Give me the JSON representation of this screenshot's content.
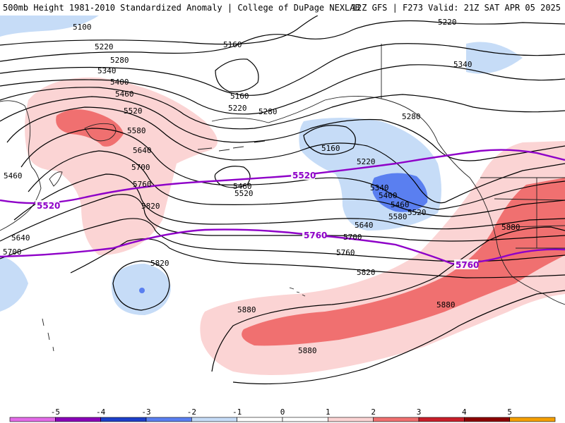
{
  "header": {
    "title_left": "500mb Height 1981-2010 Standardized Anomaly | College of DuPage NEXLAB",
    "title_right": "12Z GFS | F273 Valid: 21Z SAT APR 05 2025"
  },
  "colors": {
    "neg5": "#e36be8",
    "neg4": "#8a00b8",
    "neg3": "#1d3fc9",
    "neg2": "#5a7ff0",
    "neg1": "#c6dcf7",
    "zero": "#ffffff",
    "pos1": "#fbd4d4",
    "pos2": "#f07070",
    "pos3": "#c81e2a",
    "pos4": "#8c0000",
    "pos5": "#f5a000",
    "contour": "#000000",
    "highlight": "#8e00c8",
    "coast": "#222222"
  },
  "map": {
    "height_labels": [
      "5100",
      "5220",
      "5280",
      "5340",
      "5400",
      "5460",
      "5520",
      "5580",
      "5640",
      "5700",
      "5760",
      "5820",
      "5160",
      "5160",
      "5220",
      "5280",
      "5160",
      "5220",
      "5340",
      "5400",
      "5460",
      "5520",
      "5580",
      "5640",
      "5700",
      "5760",
      "5820",
      "5460",
      "5520",
      "5640",
      "5700",
      "5820",
      "5880",
      "5880",
      "5880",
      "5880",
      "5220",
      "5340",
      "5280",
      "5460"
    ],
    "highlight_labels": [
      "5520",
      "5520",
      "5760",
      "5760"
    ]
  },
  "colorbar": {
    "ticks": [
      "-5",
      "-4",
      "-3",
      "-2",
      "-1",
      "0",
      "1",
      "2",
      "3",
      "4",
      "5"
    ]
  }
}
